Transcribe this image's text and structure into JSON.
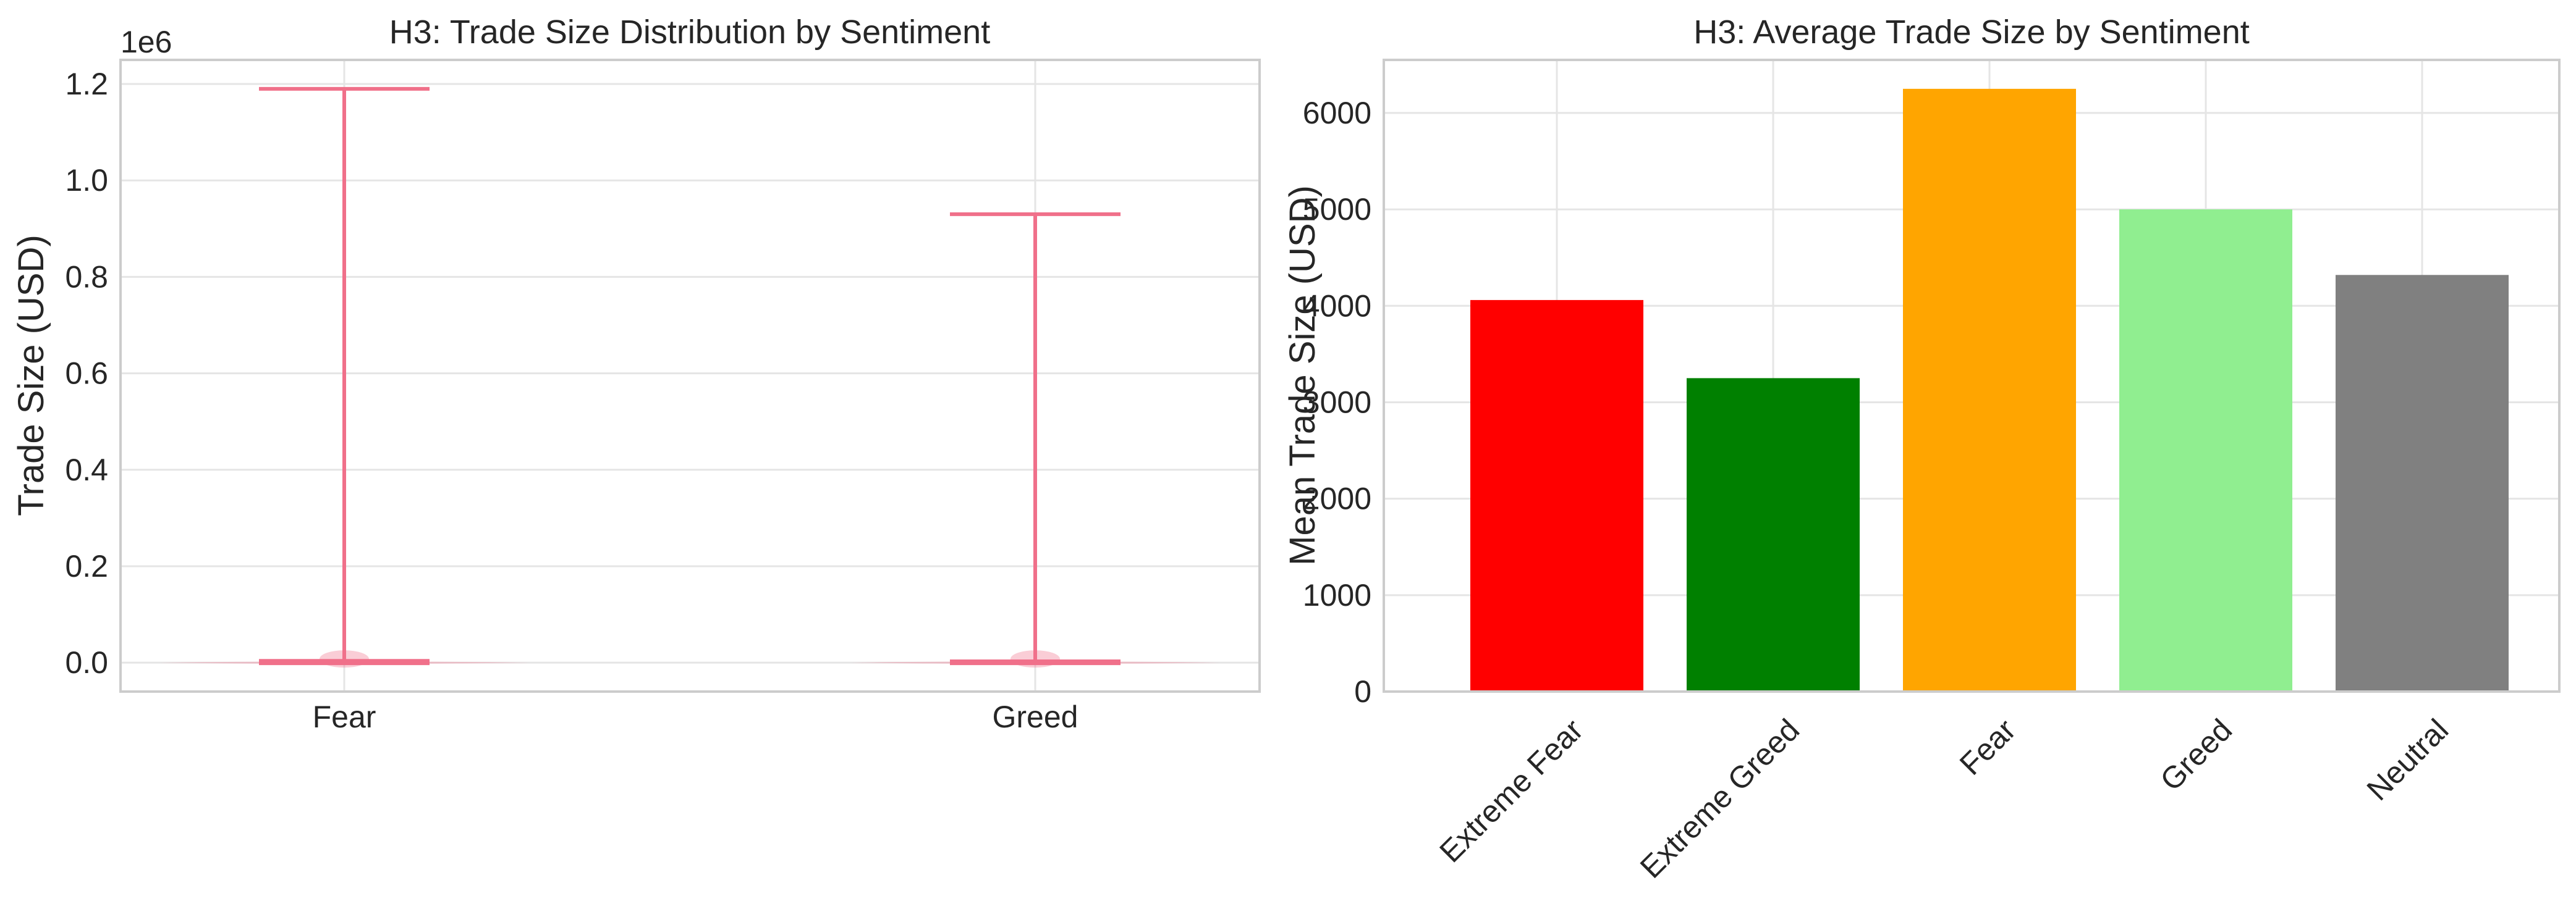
{
  "chart_data": [
    {
      "type": "violin",
      "title": "H3: Trade Size Distribution by Sentiment",
      "xlabel": "",
      "ylabel": "Trade Size (USD)",
      "y_offset_label": "1e6",
      "categories": [
        "Fear",
        "Greed"
      ],
      "series": [
        {
          "category": "Fear",
          "min": 0,
          "max": 1190000,
          "median": 5000
        },
        {
          "category": "Greed",
          "min": 0,
          "max": 930000,
          "median": 4000
        }
      ],
      "yticks": [
        "0.0",
        "0.2",
        "0.4",
        "0.6",
        "0.8",
        "1.0",
        "1.2"
      ],
      "ylim": [
        -0.06,
        1.25
      ],
      "color": "#f0708a",
      "grid": true
    },
    {
      "type": "bar",
      "title": "H3: Average Trade Size by Sentiment",
      "xlabel": "",
      "ylabel": "Mean Trade Size (USD)",
      "categories": [
        "Extreme Fear",
        "Extreme Greed",
        "Fear",
        "Greed",
        "Neutral"
      ],
      "values": [
        4060,
        3250,
        6250,
        5000,
        4320
      ],
      "colors": [
        "#ff0000",
        "#008000",
        "#ffa500",
        "#90ee90",
        "#808080"
      ],
      "yticks": [
        "0",
        "1000",
        "2000",
        "3000",
        "4000",
        "5000",
        "6000"
      ],
      "ylim": [
        0,
        6550
      ],
      "grid": true
    }
  ]
}
